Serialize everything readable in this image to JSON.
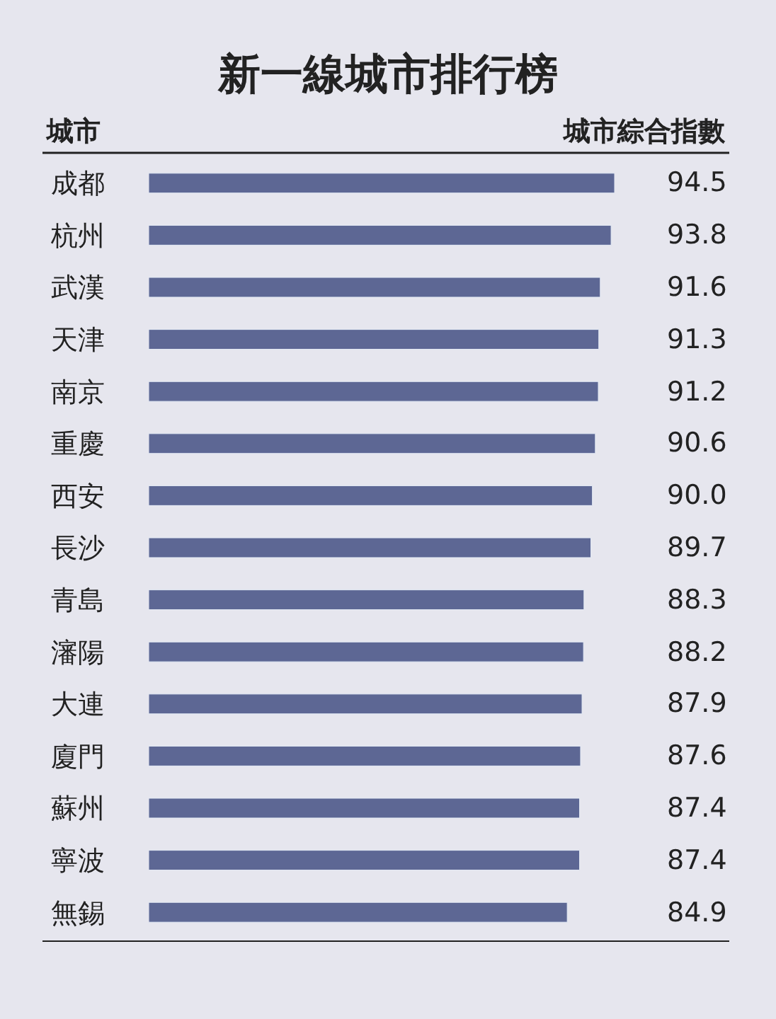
{
  "chart_data": {
    "type": "bar",
    "orientation": "horizontal",
    "title": "新一線城市排行榜",
    "ylabel": "城市",
    "xlabel": "城市綜合指數",
    "categories": [
      "成都",
      "杭州",
      "武漢",
      "天津",
      "南京",
      "重慶",
      "西安",
      "長沙",
      "青島",
      "瀋陽",
      "大連",
      "廈門",
      "蘇州",
      "寧波",
      "無錫"
    ],
    "values": [
      94.5,
      93.8,
      91.6,
      91.3,
      91.2,
      90.6,
      90.0,
      89.7,
      88.3,
      88.2,
      87.9,
      87.6,
      87.4,
      87.4,
      84.9
    ],
    "value_labels": [
      "94.5",
      "93.8",
      "91.6",
      "91.3",
      "91.2",
      "90.6",
      "90.0",
      "89.7",
      "88.3",
      "88.2",
      "87.9",
      "87.6",
      "87.4",
      "87.4",
      "84.9"
    ],
    "color": "#5d6794"
  }
}
